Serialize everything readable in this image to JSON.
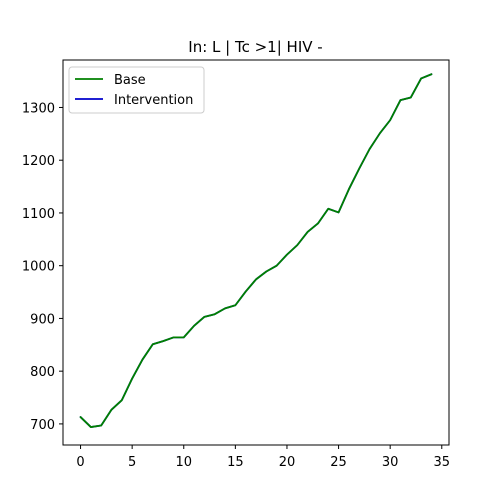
{
  "chart_data": {
    "type": "line",
    "title": "In: L | Tc >1| HIV -",
    "xlabel": "",
    "ylabel": "",
    "xlim": [
      -1.7,
      35.7
    ],
    "ylim": [
      660,
      1390
    ],
    "xticks": [
      0,
      5,
      10,
      15,
      20,
      25,
      30,
      35
    ],
    "yticks": [
      700,
      800,
      900,
      1000,
      1100,
      1200,
      1300
    ],
    "grid": false,
    "legend_position": "top-left",
    "x": [
      0,
      1,
      2,
      3,
      4,
      5,
      6,
      7,
      8,
      9,
      10,
      11,
      12,
      13,
      14,
      15,
      16,
      17,
      18,
      19,
      20,
      21,
      22,
      23,
      24,
      25,
      26,
      27,
      28,
      29,
      30,
      31,
      32,
      33,
      34
    ],
    "series": [
      {
        "name": "Base",
        "color": "#008000",
        "values": [
          713,
          694,
          697,
          727,
          745,
          786,
          822,
          851,
          857,
          864,
          864,
          886,
          903,
          908,
          919,
          925,
          951,
          974,
          989,
          1000,
          1021,
          1039,
          1064,
          1080,
          1108,
          1101,
          1145,
          1184,
          1221,
          1251,
          1276,
          1314,
          1319,
          1355,
          1363
        ]
      },
      {
        "name": "Intervention",
        "color": "#0000cc",
        "values": [
          713,
          694,
          697,
          727,
          745,
          786,
          822,
          851,
          857,
          864,
          864,
          886,
          903,
          908,
          919,
          925,
          951,
          974,
          989,
          1000,
          1021,
          1039,
          1064,
          1080,
          1108,
          1101,
          1145,
          1184,
          1221,
          1251,
          1276,
          1314,
          1319,
          1355,
          1363
        ]
      }
    ]
  }
}
